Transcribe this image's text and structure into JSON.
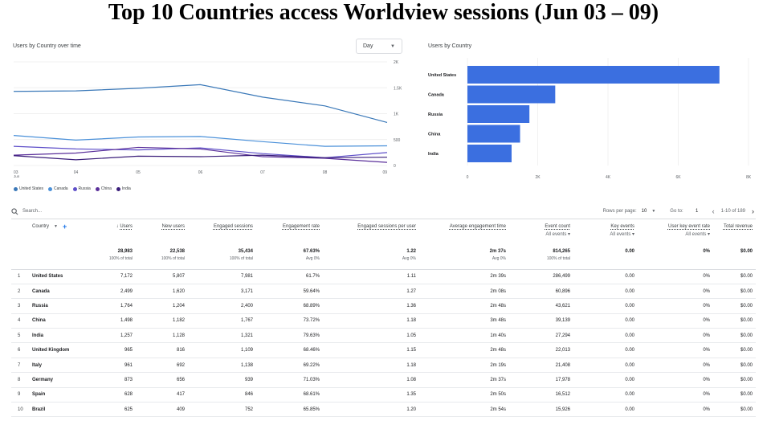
{
  "page_title": "Top 10 Countries access Worldview sessions (Jun 03 – 09)",
  "line_card": {
    "title": "Users by Country over time",
    "granularity": "Day"
  },
  "bar_card": {
    "title": "Users by Country"
  },
  "colors": {
    "accent": "#1a73e8",
    "bar": "#3b6fe0",
    "grid": "#ebebeb"
  },
  "chart_data": [
    {
      "type": "line",
      "x": [
        "03",
        "04",
        "05",
        "06",
        "07",
        "08",
        "09"
      ],
      "x_sub": [
        "Jun",
        "",
        "",
        "",
        "",
        "",
        ""
      ],
      "y_ticks": [
        "0",
        "500",
        "1K",
        "1.5K",
        "2K"
      ],
      "ylim": [
        0,
        2000
      ],
      "legend_position": "bottom-left",
      "series": [
        {
          "name": "United States",
          "color": "#3a78b8",
          "values": [
            1430,
            1440,
            1490,
            1560,
            1320,
            1150,
            830
          ]
        },
        {
          "name": "Canada",
          "color": "#4a90d9",
          "values": [
            580,
            490,
            550,
            560,
            460,
            370,
            380
          ]
        },
        {
          "name": "Russia",
          "color": "#5e4fc9",
          "values": [
            370,
            320,
            300,
            340,
            230,
            150,
            250
          ]
        },
        {
          "name": "China",
          "color": "#5a2f9a",
          "values": [
            200,
            240,
            350,
            320,
            170,
            140,
            60
          ]
        },
        {
          "name": "India",
          "color": "#3a1d7a",
          "values": [
            190,
            110,
            180,
            170,
            200,
            150,
            160
          ]
        }
      ]
    },
    {
      "type": "bar",
      "orientation": "horizontal",
      "categories": [
        "United States",
        "Canada",
        "Russia",
        "China",
        "India"
      ],
      "values": [
        7172,
        2499,
        1764,
        1498,
        1257
      ],
      "x_ticks": [
        "0",
        "2K",
        "4K",
        "6K",
        "8K"
      ],
      "xlim": [
        0,
        8000
      ]
    }
  ],
  "toolbar": {
    "search_placeholder": "Search...",
    "rows_per_page_label": "Rows per page:",
    "rows_per_page": "10",
    "goto_label": "Go to:",
    "goto_value": "1",
    "range": "1-10 of 189",
    "prev": "‹",
    "next": "›"
  },
  "table": {
    "dimension_header": "Country",
    "headers": [
      {
        "label": "Users",
        "sort": "↓",
        "sub": ""
      },
      {
        "label": "New users",
        "sub": ""
      },
      {
        "label": "Engaged sessions",
        "sub": ""
      },
      {
        "label": "Engagement rate",
        "sub": ""
      },
      {
        "label": "Engaged sessions per user",
        "sub": ""
      },
      {
        "label": "Average engagement time",
        "sub": ""
      },
      {
        "label": "Event count",
        "sub": "All events"
      },
      {
        "label": "Key events",
        "sub": "All events"
      },
      {
        "label": "User key event rate",
        "sub": "All events"
      },
      {
        "label": "Total revenue",
        "sub": ""
      }
    ],
    "totals": [
      {
        "value": "28,983",
        "sub": "100% of total"
      },
      {
        "value": "22,538",
        "sub": "100% of total"
      },
      {
        "value": "35,434",
        "sub": "100% of total"
      },
      {
        "value": "67.63%",
        "sub": "Avg 0%"
      },
      {
        "value": "1.22",
        "sub": "Avg 0%"
      },
      {
        "value": "2m 37s",
        "sub": "Avg 0%"
      },
      {
        "value": "814,265",
        "sub": "100% of total"
      },
      {
        "value": "0.00",
        "sub": ""
      },
      {
        "value": "0%",
        "sub": ""
      },
      {
        "value": "$0.00",
        "sub": ""
      }
    ],
    "rows": [
      {
        "idx": "1",
        "country": "United States",
        "cells": [
          "7,172",
          "5,807",
          "7,981",
          "61.7%",
          "1.11",
          "2m 39s",
          "286,499",
          "0.00",
          "0%",
          "$0.00"
        ]
      },
      {
        "idx": "2",
        "country": "Canada",
        "cells": [
          "2,499",
          "1,620",
          "3,171",
          "59.64%",
          "1.27",
          "2m 08s",
          "60,896",
          "0.00",
          "0%",
          "$0.00"
        ]
      },
      {
        "idx": "3",
        "country": "Russia",
        "cells": [
          "1,764",
          "1,204",
          "2,400",
          "68.89%",
          "1.36",
          "2m 48s",
          "43,621",
          "0.00",
          "0%",
          "$0.00"
        ]
      },
      {
        "idx": "4",
        "country": "China",
        "cells": [
          "1,498",
          "1,182",
          "1,767",
          "73.72%",
          "1.18",
          "3m 48s",
          "39,139",
          "0.00",
          "0%",
          "$0.00"
        ]
      },
      {
        "idx": "5",
        "country": "India",
        "cells": [
          "1,257",
          "1,128",
          "1,321",
          "79.63%",
          "1.05",
          "1m 40s",
          "27,294",
          "0.00",
          "0%",
          "$0.00"
        ]
      },
      {
        "idx": "6",
        "country": "United Kingdom",
        "cells": [
          "965",
          "816",
          "1,109",
          "68.46%",
          "1.15",
          "2m 48s",
          "22,013",
          "0.00",
          "0%",
          "$0.00"
        ]
      },
      {
        "idx": "7",
        "country": "Italy",
        "cells": [
          "961",
          "692",
          "1,138",
          "69.22%",
          "1.18",
          "2m 19s",
          "21,408",
          "0.00",
          "0%",
          "$0.00"
        ]
      },
      {
        "idx": "8",
        "country": "Germany",
        "cells": [
          "873",
          "656",
          "939",
          "71.03%",
          "1.08",
          "2m 37s",
          "17,978",
          "0.00",
          "0%",
          "$0.00"
        ]
      },
      {
        "idx": "9",
        "country": "Spain",
        "cells": [
          "628",
          "417",
          "846",
          "68.61%",
          "1.35",
          "2m 50s",
          "16,512",
          "0.00",
          "0%",
          "$0.00"
        ]
      },
      {
        "idx": "10",
        "country": "Brazil",
        "cells": [
          "625",
          "409",
          "752",
          "65.85%",
          "1.20",
          "2m 54s",
          "15,926",
          "0.00",
          "0%",
          "$0.00"
        ]
      }
    ]
  }
}
